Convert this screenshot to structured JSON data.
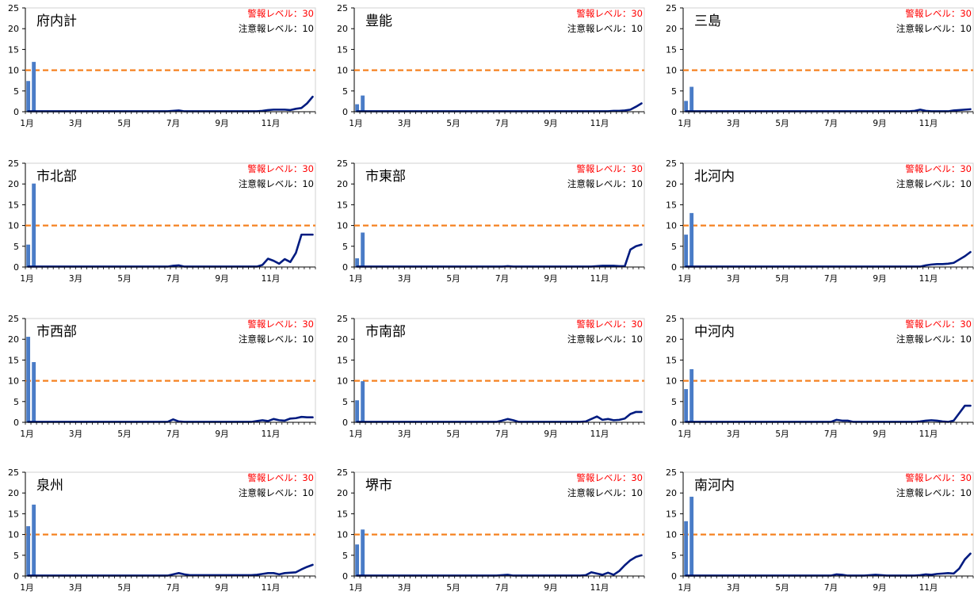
{
  "common": {
    "warning_label": "警報レベル：30",
    "advisory_label": "注意報レベル：10",
    "warning_color": "#ff0000",
    "threshold_line_color": "#f58220",
    "bar_color": "#4a7cc7",
    "line_color": "#001b80",
    "y_ticks": [
      "0",
      "5",
      "10",
      "15",
      "20",
      "25"
    ],
    "x_ticks": [
      "1月",
      "3月",
      "5月",
      "7月",
      "9月",
      "11月"
    ]
  },
  "chart_data": [
    {
      "type": "bar+line",
      "title": "府内計",
      "ylim": [
        0,
        25
      ],
      "advisory_level": 10,
      "weeks": 52,
      "series": [
        {
          "type": "bar",
          "values": [
            7.4,
            12.0
          ]
        },
        {
          "type": "line",
          "values": [
            0.1,
            0.1,
            0.1,
            0.1,
            0.1,
            0.1,
            0.1,
            0.1,
            0.1,
            0.1,
            0.1,
            0.1,
            0.1,
            0.1,
            0.1,
            0.1,
            0.1,
            0.1,
            0.1,
            0.1,
            0.1,
            0.1,
            0.1,
            0.1,
            0.1,
            0.1,
            0.2,
            0.3,
            0.1,
            0.1,
            0.1,
            0.1,
            0.1,
            0.1,
            0.1,
            0.1,
            0.1,
            0.1,
            0.1,
            0.1,
            0.1,
            0.1,
            0.2,
            0.4,
            0.5,
            0.5,
            0.5,
            0.4,
            0.7,
            0.9,
            2.0,
            3.6
          ]
        }
      ]
    },
    {
      "type": "bar+line",
      "title": "豊能",
      "ylim": [
        0,
        25
      ],
      "advisory_level": 10,
      "weeks": 52,
      "series": [
        {
          "type": "bar",
          "values": [
            1.8,
            3.9
          ]
        },
        {
          "type": "line",
          "values": [
            0.1,
            0.1,
            0.1,
            0.1,
            0.1,
            0.1,
            0.1,
            0.1,
            0.1,
            0.1,
            0.1,
            0.1,
            0.1,
            0.1,
            0.1,
            0.1,
            0.1,
            0.1,
            0.1,
            0.1,
            0.1,
            0.1,
            0.1,
            0.1,
            0.1,
            0.1,
            0.1,
            0.1,
            0.1,
            0.1,
            0.1,
            0.1,
            0.1,
            0.1,
            0.1,
            0.1,
            0.1,
            0.1,
            0.1,
            0.1,
            0.1,
            0.1,
            0.1,
            0.1,
            0.1,
            0.1,
            0.2,
            0.2,
            0.3,
            0.5,
            1.2,
            2.0
          ]
        }
      ]
    },
    {
      "type": "bar+line",
      "title": "三島",
      "ylim": [
        0,
        25
      ],
      "advisory_level": 10,
      "weeks": 52,
      "series": [
        {
          "type": "bar",
          "values": [
            2.6,
            6.0
          ]
        },
        {
          "type": "line",
          "values": [
            0.1,
            0.1,
            0.1,
            0.1,
            0.1,
            0.1,
            0.1,
            0.1,
            0.1,
            0.1,
            0.1,
            0.1,
            0.1,
            0.1,
            0.1,
            0.1,
            0.1,
            0.1,
            0.1,
            0.1,
            0.1,
            0.1,
            0.1,
            0.1,
            0.1,
            0.1,
            0.1,
            0.1,
            0.1,
            0.1,
            0.1,
            0.1,
            0.1,
            0.1,
            0.1,
            0.1,
            0.1,
            0.1,
            0.1,
            0.1,
            0.1,
            0.2,
            0.5,
            0.2,
            0.1,
            0.1,
            0.1,
            0.1,
            0.3,
            0.4,
            0.5,
            0.6
          ]
        }
      ]
    },
    {
      "type": "bar+line",
      "title": "市北部",
      "ylim": [
        0,
        25
      ],
      "advisory_level": 10,
      "weeks": 52,
      "series": [
        {
          "type": "bar",
          "values": [
            5.4,
            20.1
          ]
        },
        {
          "type": "line",
          "values": [
            0.1,
            0.1,
            0.1,
            0.1,
            0.1,
            0.1,
            0.1,
            0.1,
            0.1,
            0.1,
            0.1,
            0.1,
            0.1,
            0.1,
            0.1,
            0.1,
            0.1,
            0.1,
            0.1,
            0.1,
            0.1,
            0.1,
            0.1,
            0.1,
            0.1,
            0.1,
            0.3,
            0.4,
            0.1,
            0.1,
            0.1,
            0.1,
            0.1,
            0.1,
            0.1,
            0.1,
            0.1,
            0.1,
            0.1,
            0.1,
            0.1,
            0.1,
            0.5,
            2.0,
            1.5,
            0.8,
            1.9,
            1.2,
            3.4,
            7.8,
            7.8,
            7.8
          ]
        }
      ]
    },
    {
      "type": "bar+line",
      "title": "市東部",
      "ylim": [
        0,
        25
      ],
      "advisory_level": 10,
      "weeks": 52,
      "series": [
        {
          "type": "bar",
          "values": [
            2.1,
            8.3
          ]
        },
        {
          "type": "line",
          "values": [
            0.1,
            0.1,
            0.1,
            0.1,
            0.1,
            0.1,
            0.1,
            0.1,
            0.1,
            0.1,
            0.1,
            0.1,
            0.1,
            0.1,
            0.1,
            0.1,
            0.1,
            0.1,
            0.1,
            0.1,
            0.1,
            0.1,
            0.1,
            0.1,
            0.1,
            0.1,
            0.1,
            0.2,
            0.1,
            0.1,
            0.1,
            0.1,
            0.1,
            0.1,
            0.1,
            0.1,
            0.1,
            0.1,
            0.1,
            0.1,
            0.1,
            0.1,
            0.1,
            0.2,
            0.3,
            0.3,
            0.3,
            0.2,
            0.2,
            4.2,
            5.0,
            5.4
          ]
        }
      ]
    },
    {
      "type": "bar+line",
      "title": "北河内",
      "ylim": [
        0,
        25
      ],
      "advisory_level": 10,
      "weeks": 52,
      "series": [
        {
          "type": "bar",
          "values": [
            7.8,
            13.0
          ]
        },
        {
          "type": "line",
          "values": [
            0.1,
            0.1,
            0.1,
            0.1,
            0.1,
            0.1,
            0.1,
            0.1,
            0.1,
            0.1,
            0.1,
            0.1,
            0.1,
            0.1,
            0.1,
            0.1,
            0.1,
            0.1,
            0.1,
            0.1,
            0.1,
            0.1,
            0.1,
            0.1,
            0.1,
            0.1,
            0.1,
            0.1,
            0.1,
            0.1,
            0.1,
            0.1,
            0.1,
            0.1,
            0.1,
            0.1,
            0.1,
            0.1,
            0.1,
            0.1,
            0.1,
            0.1,
            0.1,
            0.4,
            0.6,
            0.7,
            0.7,
            0.8,
            1.0,
            1.8,
            2.6,
            3.6
          ]
        }
      ]
    },
    {
      "type": "bar+line",
      "title": "市西部",
      "ylim": [
        0,
        25
      ],
      "advisory_level": 10,
      "weeks": 52,
      "series": [
        {
          "type": "bar",
          "values": [
            20.6,
            14.5
          ]
        },
        {
          "type": "line",
          "values": [
            0.1,
            0.1,
            0.1,
            0.1,
            0.1,
            0.1,
            0.1,
            0.1,
            0.1,
            0.1,
            0.1,
            0.1,
            0.1,
            0.1,
            0.1,
            0.1,
            0.1,
            0.1,
            0.1,
            0.1,
            0.1,
            0.1,
            0.1,
            0.1,
            0.1,
            0.1,
            0.7,
            0.2,
            0.1,
            0.1,
            0.1,
            0.1,
            0.1,
            0.1,
            0.1,
            0.1,
            0.1,
            0.1,
            0.1,
            0.1,
            0.1,
            0.3,
            0.5,
            0.3,
            0.8,
            0.5,
            0.4,
            0.9,
            1.0,
            1.3,
            1.2,
            1.2
          ]
        }
      ]
    },
    {
      "type": "bar+line",
      "title": "市南部",
      "ylim": [
        0,
        25
      ],
      "advisory_level": 10,
      "weeks": 52,
      "series": [
        {
          "type": "bar",
          "values": [
            5.3,
            9.9
          ]
        },
        {
          "type": "line",
          "values": [
            0.1,
            0.1,
            0.1,
            0.1,
            0.1,
            0.1,
            0.1,
            0.1,
            0.1,
            0.1,
            0.1,
            0.1,
            0.1,
            0.1,
            0.1,
            0.1,
            0.1,
            0.1,
            0.1,
            0.1,
            0.1,
            0.1,
            0.1,
            0.1,
            0.1,
            0.1,
            0.4,
            0.8,
            0.5,
            0.1,
            0.1,
            0.1,
            0.1,
            0.1,
            0.1,
            0.1,
            0.1,
            0.1,
            0.1,
            0.1,
            0.1,
            0.2,
            0.8,
            1.4,
            0.6,
            0.8,
            0.5,
            0.6,
            0.9,
            2.0,
            2.5,
            2.5
          ]
        }
      ]
    },
    {
      "type": "bar+line",
      "title": "中河内",
      "ylim": [
        0,
        25
      ],
      "advisory_level": 10,
      "weeks": 52,
      "series": [
        {
          "type": "bar",
          "values": [
            8.0,
            12.8
          ]
        },
        {
          "type": "line",
          "values": [
            0.1,
            0.1,
            0.1,
            0.1,
            0.1,
            0.1,
            0.1,
            0.1,
            0.1,
            0.1,
            0.1,
            0.1,
            0.1,
            0.1,
            0.1,
            0.1,
            0.1,
            0.1,
            0.1,
            0.1,
            0.1,
            0.1,
            0.1,
            0.1,
            0.1,
            0.1,
            0.1,
            0.6,
            0.4,
            0.4,
            0.1,
            0.1,
            0.1,
            0.1,
            0.1,
            0.1,
            0.1,
            0.1,
            0.1,
            0.1,
            0.1,
            0.1,
            0.2,
            0.4,
            0.5,
            0.4,
            0.2,
            0.1,
            0.4,
            2.2,
            4.0,
            4.0
          ]
        }
      ]
    },
    {
      "type": "bar+line",
      "title": "泉州",
      "ylim": [
        0,
        25
      ],
      "advisory_level": 10,
      "weeks": 52,
      "series": [
        {
          "type": "bar",
          "values": [
            12.0,
            17.2
          ]
        },
        {
          "type": "line",
          "values": [
            0.1,
            0.1,
            0.1,
            0.1,
            0.1,
            0.1,
            0.1,
            0.1,
            0.1,
            0.1,
            0.1,
            0.1,
            0.1,
            0.1,
            0.1,
            0.1,
            0.1,
            0.1,
            0.1,
            0.1,
            0.1,
            0.1,
            0.1,
            0.1,
            0.1,
            0.1,
            0.4,
            0.7,
            0.4,
            0.2,
            0.2,
            0.2,
            0.2,
            0.2,
            0.2,
            0.2,
            0.2,
            0.2,
            0.2,
            0.2,
            0.2,
            0.3,
            0.5,
            0.7,
            0.7,
            0.4,
            0.7,
            0.8,
            0.9,
            1.6,
            2.2,
            2.7
          ]
        }
      ]
    },
    {
      "type": "bar+line",
      "title": "堺市",
      "ylim": [
        0,
        25
      ],
      "advisory_level": 10,
      "weeks": 52,
      "series": [
        {
          "type": "bar",
          "values": [
            7.6,
            11.2
          ]
        },
        {
          "type": "line",
          "values": [
            0.1,
            0.1,
            0.1,
            0.1,
            0.1,
            0.1,
            0.1,
            0.1,
            0.1,
            0.1,
            0.1,
            0.1,
            0.1,
            0.1,
            0.1,
            0.1,
            0.1,
            0.1,
            0.1,
            0.1,
            0.1,
            0.1,
            0.1,
            0.1,
            0.1,
            0.1,
            0.2,
            0.3,
            0.1,
            0.1,
            0.1,
            0.1,
            0.1,
            0.1,
            0.1,
            0.1,
            0.1,
            0.1,
            0.1,
            0.1,
            0.1,
            0.2,
            0.9,
            0.6,
            0.3,
            0.8,
            0.3,
            1.2,
            2.6,
            3.8,
            4.6,
            5.0
          ]
        }
      ]
    },
    {
      "type": "bar+line",
      "title": "南河内",
      "ylim": [
        0,
        25
      ],
      "advisory_level": 10,
      "weeks": 52,
      "series": [
        {
          "type": "bar",
          "values": [
            13.2,
            19.1
          ]
        },
        {
          "type": "line",
          "values": [
            0.1,
            0.1,
            0.1,
            0.1,
            0.1,
            0.1,
            0.1,
            0.1,
            0.1,
            0.1,
            0.1,
            0.1,
            0.1,
            0.1,
            0.1,
            0.1,
            0.1,
            0.1,
            0.1,
            0.1,
            0.1,
            0.1,
            0.1,
            0.1,
            0.1,
            0.1,
            0.1,
            0.4,
            0.3,
            0.1,
            0.1,
            0.1,
            0.1,
            0.2,
            0.3,
            0.2,
            0.1,
            0.1,
            0.1,
            0.1,
            0.1,
            0.1,
            0.2,
            0.4,
            0.3,
            0.5,
            0.6,
            0.7,
            0.6,
            1.8,
            4.0,
            5.4
          ]
        }
      ]
    }
  ]
}
